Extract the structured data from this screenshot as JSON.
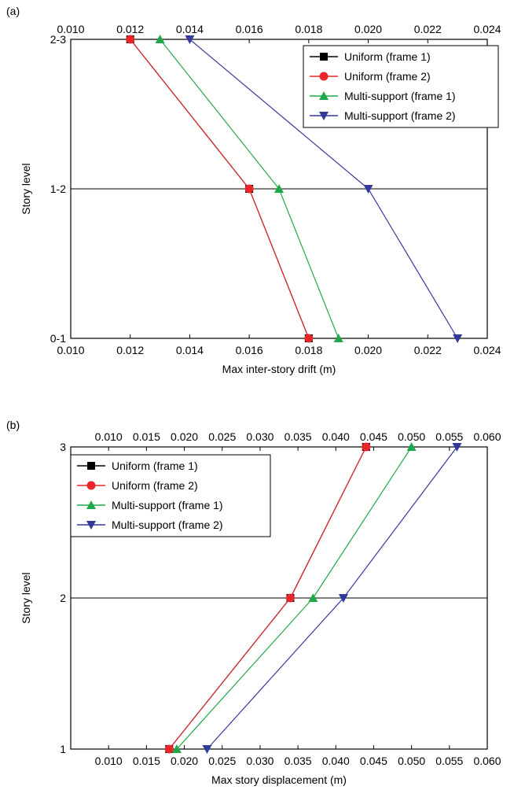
{
  "panels": [
    {
      "label": "(a)"
    },
    {
      "label": "(b)"
    }
  ],
  "chart_data": [
    {
      "type": "line",
      "orientation": "horizontal-profile",
      "xlabel": "Max inter-story drift (m)",
      "ylabel": "Story level",
      "xlim": [
        0.01,
        0.024
      ],
      "x_ticks": [
        "0.010",
        "0.012",
        "0.014",
        "0.016",
        "0.018",
        "0.020",
        "0.022",
        "0.024"
      ],
      "y_categories": [
        "0-1",
        "1-2",
        "2-3"
      ],
      "grid": "horizontal line at middle level",
      "legend_position": "top-right",
      "series": [
        {
          "name": "Uniform (frame 1)",
          "color": "#000000",
          "marker": "square",
          "x": [
            0.018,
            0.016,
            0.012
          ]
        },
        {
          "name": "Uniform (frame 2)",
          "color": "#e8262a",
          "marker": "circle",
          "x": [
            0.018,
            0.016,
            0.012
          ]
        },
        {
          "name": "Multi-support (frame 1)",
          "color": "#1fa84a",
          "marker": "triangle-up",
          "x": [
            0.019,
            0.017,
            0.013
          ]
        },
        {
          "name": "Multi-support (frame 2)",
          "color": "#33399a",
          "marker": "triangle-down",
          "x": [
            0.023,
            0.02,
            0.014
          ]
        }
      ]
    },
    {
      "type": "line",
      "orientation": "horizontal-profile",
      "xlabel": "Max story displacement (m)",
      "ylabel": "Story level",
      "xlim": [
        0.005,
        0.06
      ],
      "x_ticks": [
        "0.010",
        "0.015",
        "0.020",
        "0.025",
        "0.030",
        "0.035",
        "0.040",
        "0.045",
        "0.050",
        "0.055",
        "0.060"
      ],
      "y_categories": [
        "1",
        "2",
        "3"
      ],
      "grid": "horizontal line at middle level",
      "legend_position": "top-left",
      "series": [
        {
          "name": "Uniform (frame 1)",
          "color": "#000000",
          "marker": "square",
          "x": [
            0.018,
            0.034,
            0.044
          ]
        },
        {
          "name": "Uniform (frame 2)",
          "color": "#e8262a",
          "marker": "circle",
          "x": [
            0.018,
            0.034,
            0.044
          ]
        },
        {
          "name": "Multi-support (frame 1)",
          "color": "#1fa84a",
          "marker": "triangle-up",
          "x": [
            0.019,
            0.037,
            0.05
          ]
        },
        {
          "name": "Multi-support (frame 2)",
          "color": "#33399a",
          "marker": "triangle-down",
          "x": [
            0.023,
            0.041,
            0.056
          ]
        }
      ]
    }
  ]
}
